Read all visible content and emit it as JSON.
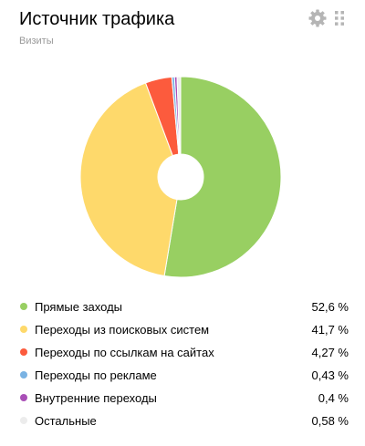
{
  "header": {
    "title": "Источник трафика",
    "subtitle": "Визиты"
  },
  "icons": {
    "settings": "gear-icon",
    "drag": "drag-handle-icon"
  },
  "chart_data": {
    "type": "pie",
    "donut": true,
    "title": "Источник трафика",
    "subtitle": "Визиты",
    "legend_position": "bottom",
    "slices": [
      {
        "label": "Прямые заходы",
        "value": 52.6,
        "value_text": "52,6 %",
        "color": "#98cf62"
      },
      {
        "label": "Переходы из поисковых систем",
        "value": 41.7,
        "value_text": "41,7 %",
        "color": "#fed96b"
      },
      {
        "label": "Переходы по ссылкам на сайтах",
        "value": 4.27,
        "value_text": "4,27 %",
        "color": "#fc5b3d"
      },
      {
        "label": "Переходы по рекламе",
        "value": 0.43,
        "value_text": "0,43 %",
        "color": "#7ab3e3"
      },
      {
        "label": "Внутренние переходы",
        "value": 0.4,
        "value_text": "0,4 %",
        "color": "#a94fb7"
      },
      {
        "label": "Остальные",
        "value": 0.58,
        "value_text": "0,58 %",
        "color": "#ececec"
      }
    ]
  }
}
